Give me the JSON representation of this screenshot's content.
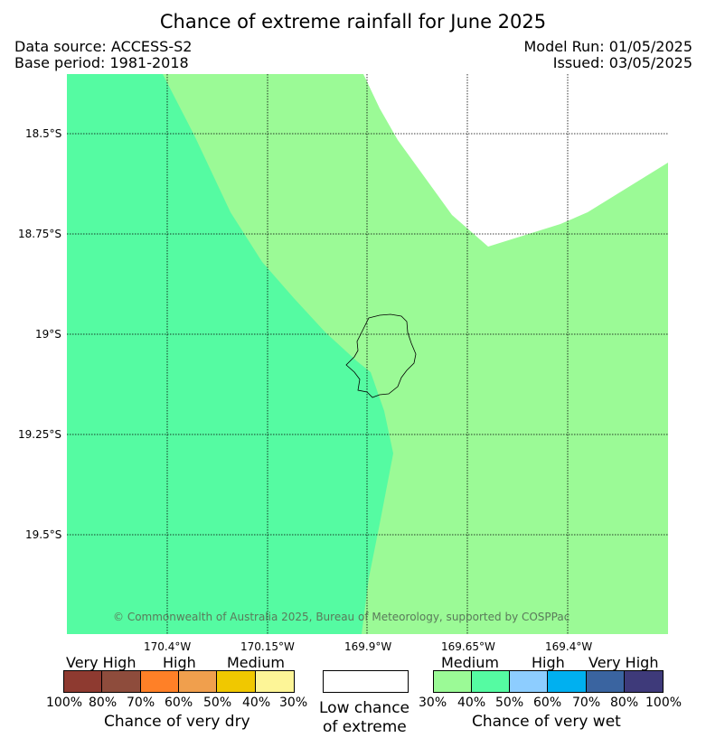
{
  "title": "Chance of extreme rainfall for June 2025",
  "meta": {
    "data_source": "Data source: ACCESS-S2",
    "base_period": "Base period: 1981-2018",
    "model_run": "Model Run: 01/05/2025",
    "issued": "Issued: 03/05/2025"
  },
  "map": {
    "latitude_labels": [
      "18.5°S",
      "18.75°S",
      "19°S",
      "19.25°S",
      "19.5°S"
    ],
    "longitude_labels": [
      "170.4°W",
      "170.15°W",
      "169.9°W",
      "169.65°W",
      "169.4°W"
    ],
    "regions": {
      "wet_medium_color": "#9bfa96",
      "wet_40_50_color": "#55fba2",
      "low_chance_color": "#ffffff"
    },
    "copyright": "© Commonwealth of Australia 2025, Bureau of Meteorology, supported by COSPPac"
  },
  "legend": {
    "dry": {
      "categories": [
        "Very High",
        "High",
        "Medium"
      ],
      "colors": [
        "#8e3a30",
        "#8e4c3c",
        "#ff8027",
        "#f09f4d",
        "#f0c800",
        "#fdf597"
      ],
      "percent_labels": [
        "100%",
        "80%",
        "70%",
        "60%",
        "50%",
        "40%",
        "30%"
      ],
      "caption": "Chance of very dry"
    },
    "neutral": {
      "color": "#ffffff",
      "caption_line1": "Low chance",
      "caption_line2": "of extreme"
    },
    "wet": {
      "categories": [
        "Medium",
        "High",
        "Very High"
      ],
      "colors": [
        "#9bfa96",
        "#55fba2",
        "#8dcdff",
        "#00b0f0",
        "#3a64a0",
        "#3e3a7a"
      ],
      "percent_labels": [
        "30%",
        "40%",
        "50%",
        "60%",
        "70%",
        "80%",
        "100%"
      ],
      "caption": "Chance of very wet"
    }
  }
}
